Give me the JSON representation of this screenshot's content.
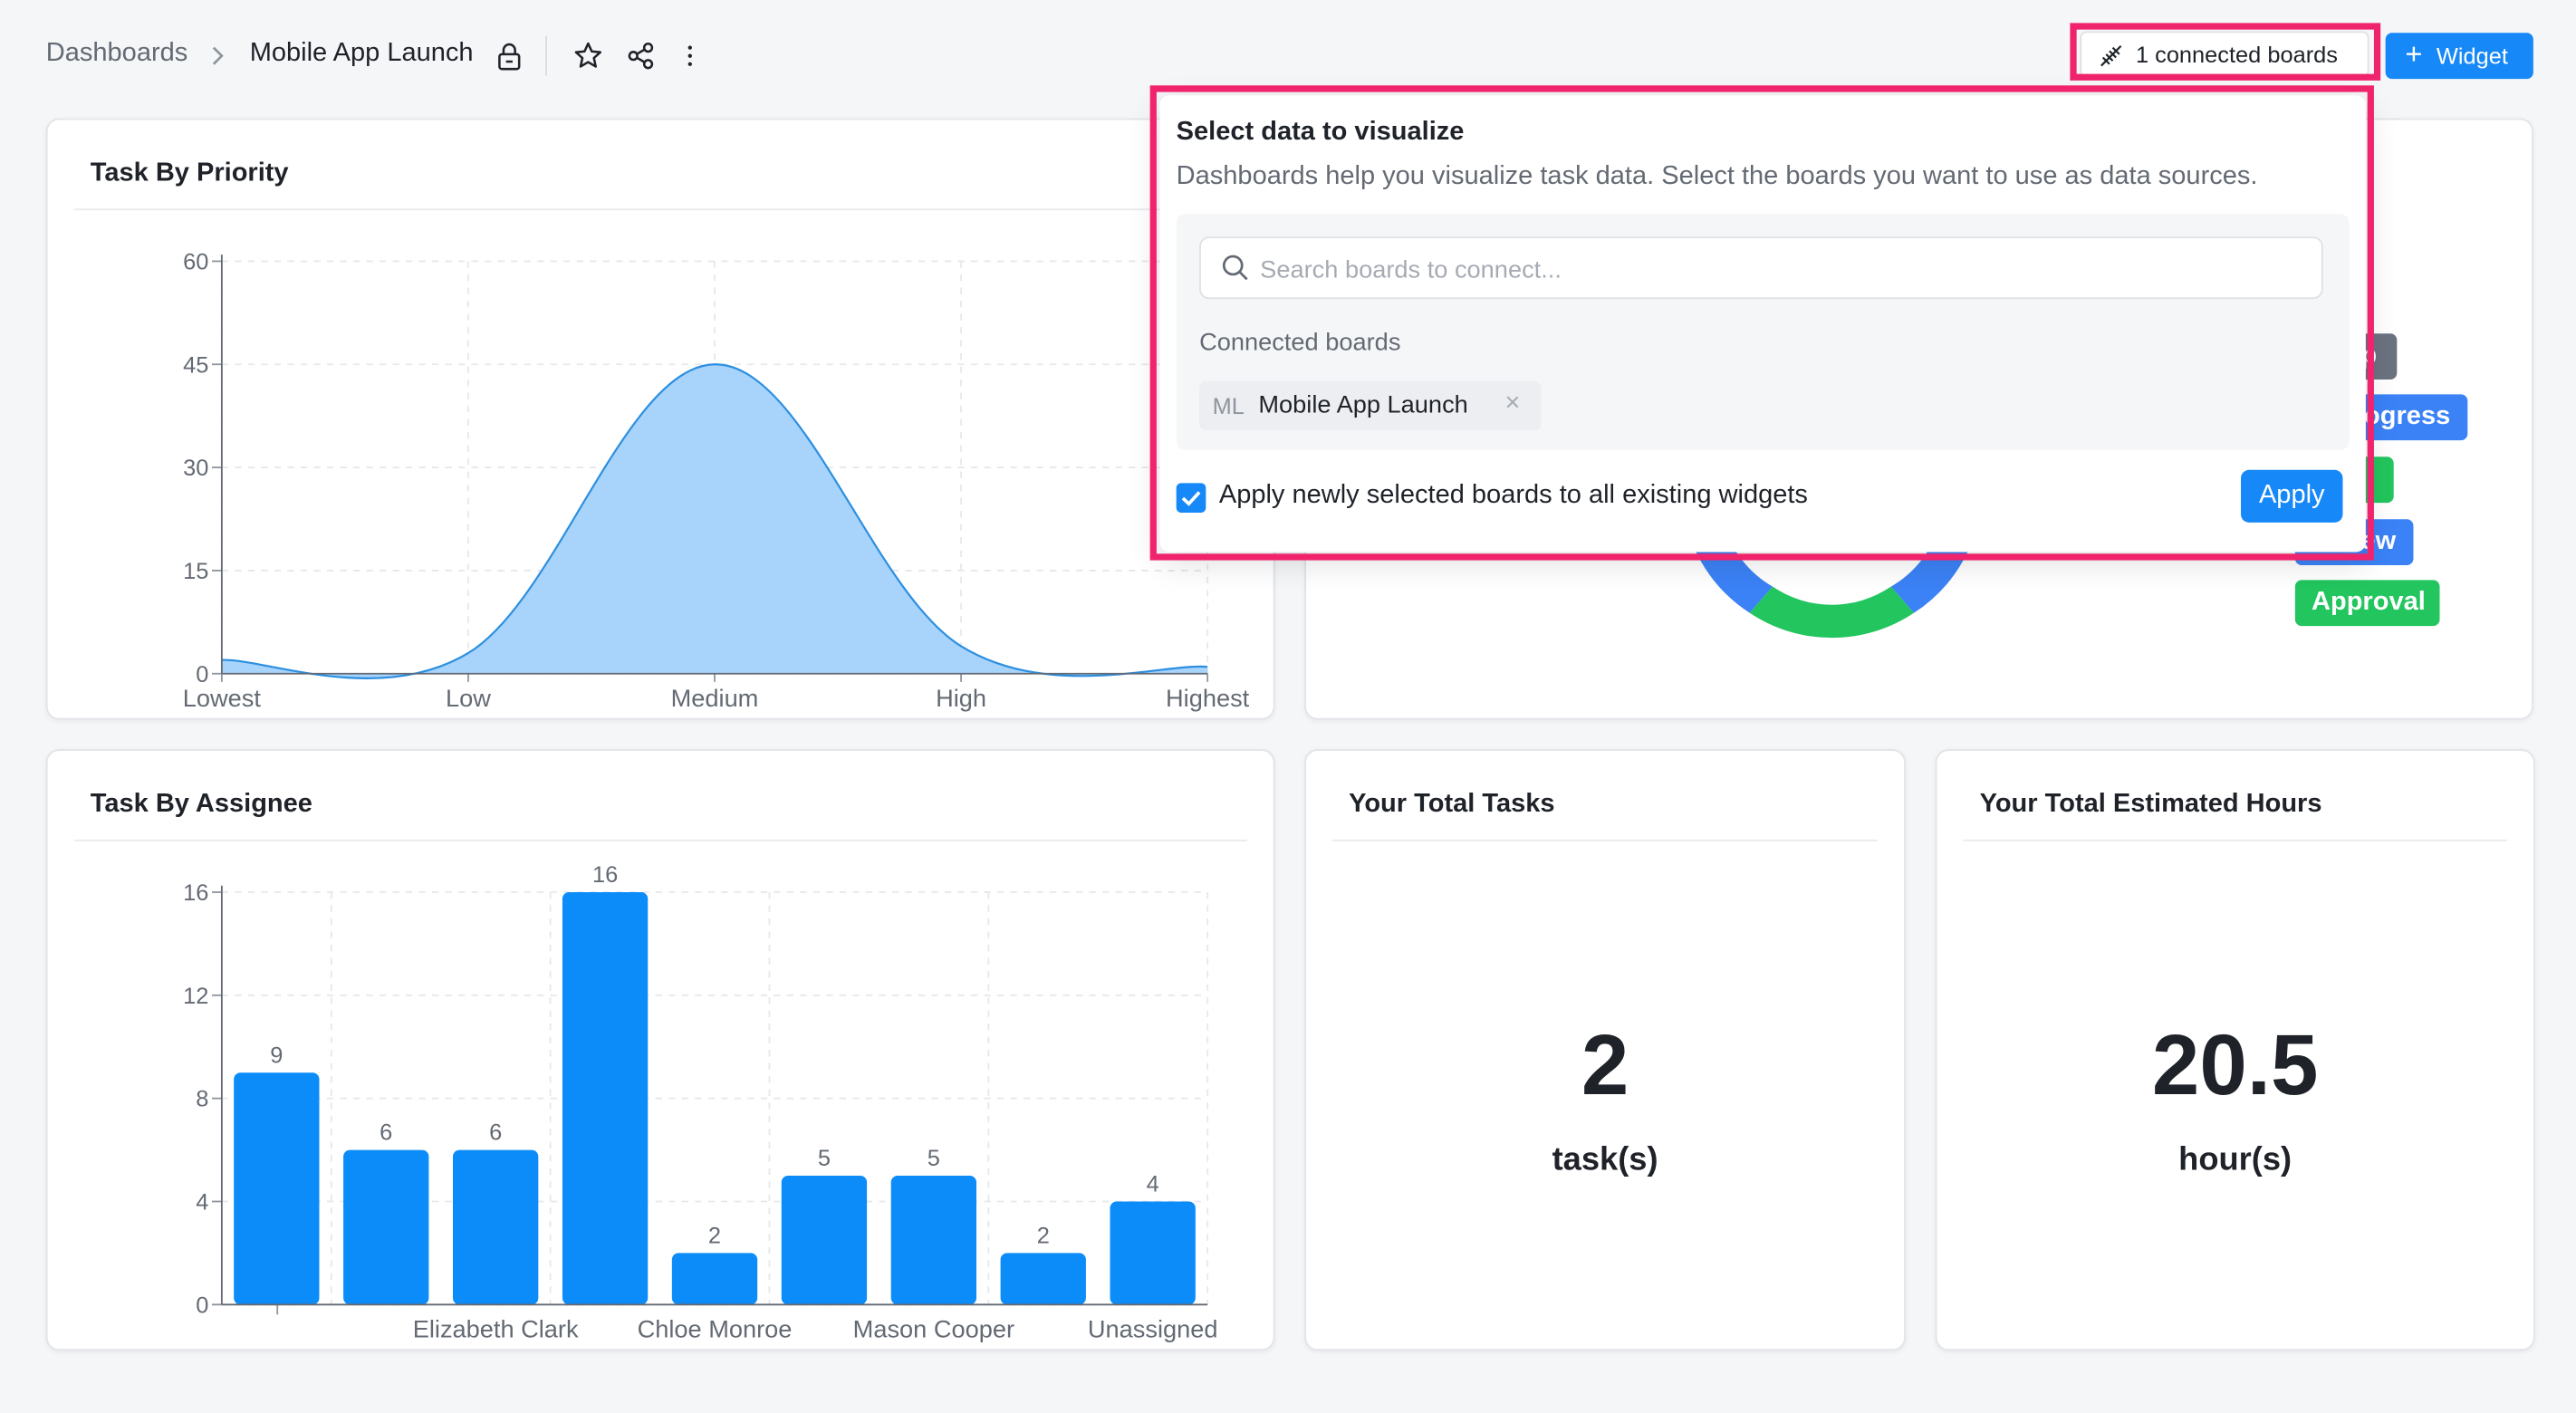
{
  "breadcrumb": {
    "root": "Dashboards",
    "current": "Mobile App Launch"
  },
  "header": {
    "connected_boards_label": "1 connected boards",
    "widget_button_label": "Widget"
  },
  "widgets": {
    "priority": {
      "title": "Task By Priority"
    },
    "assignee": {
      "title": "Task By Assignee"
    },
    "total_tasks": {
      "title": "Your Total Tasks",
      "value": "2",
      "unit": "task(s)"
    },
    "total_hours": {
      "title": "Your Total Estimated Hours",
      "value": "20.5",
      "unit": "hour(s)"
    }
  },
  "status_pills": [
    {
      "label": "p",
      "color": "#6b7280"
    },
    {
      "label": "ogress",
      "color": "#3b82f6"
    },
    {
      "label": "",
      "color": "#22c55e"
    },
    {
      "label": "ew",
      "color": "#3b82f6"
    },
    {
      "label": "Approval",
      "color": "#22c55e"
    }
  ],
  "popover": {
    "title": "Select data to visualize",
    "description": "Dashboards help you visualize task data. Select the boards you want to use as data sources.",
    "search_placeholder": "Search boards to connect...",
    "connected_label": "Connected boards",
    "chip_abbr": "ML",
    "chip_name": "Mobile App Launch",
    "apply_all_label": "Apply newly selected boards to all existing widgets",
    "apply_all_checked": true,
    "apply_button": "Apply"
  },
  "colors": {
    "accent": "#1688f7",
    "highlight": "#f0246c",
    "bar": "#0b8cf9",
    "area_fill": "#a8d3fb",
    "area_stroke": "#2b8fe0"
  },
  "chart_data": [
    {
      "type": "area",
      "title": "Task By Priority",
      "categories": [
        "Lowest",
        "Low",
        "Medium",
        "High",
        "Highest"
      ],
      "values": [
        2,
        3,
        45,
        4,
        1
      ],
      "ylim": [
        0,
        60
      ],
      "yticks": [
        "0",
        "15",
        "30",
        "45",
        "60"
      ],
      "grid": true
    },
    {
      "type": "bar",
      "title": "Task By Assignee",
      "categories": [
        "",
        "",
        "Elizabeth Clark",
        "",
        "Chloe Monroe",
        "",
        "Mason Cooper",
        "",
        "Unassigned"
      ],
      "values": [
        9,
        6,
        6,
        16,
        2,
        5,
        5,
        2,
        4
      ],
      "ylim": [
        0,
        16
      ],
      "yticks": [
        "0",
        "4",
        "8",
        "12",
        "16"
      ],
      "grid": true
    }
  ]
}
